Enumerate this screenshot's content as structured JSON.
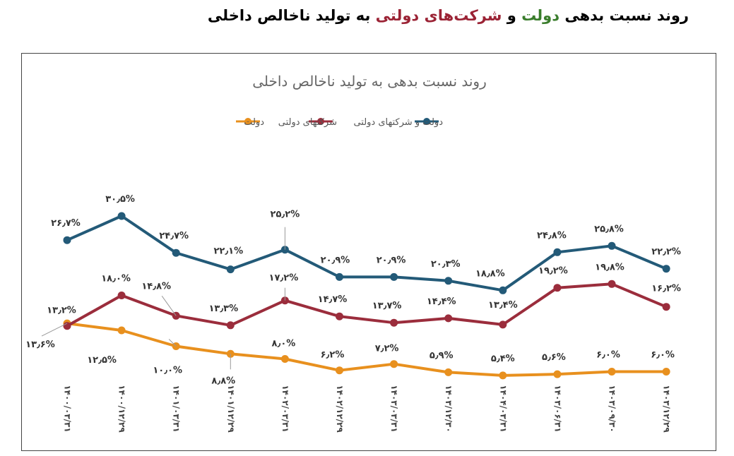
{
  "page_title": {
    "part1": "روند نسبت بدهی",
    "gov": "دولت",
    "and": "و",
    "soe": "شرکت‌های دولتی",
    "part2": "به تولید ناخالص داخلی"
  },
  "colors": {
    "gov": "#e8901e",
    "soe": "#9b2d3c",
    "total": "#235a78",
    "label": "#333333",
    "title": "#666666"
  },
  "chart_data": {
    "type": "line",
    "title": "روند نسبت بدهی به تولید ناخالص داخلی",
    "legend_position": "top",
    "grid": false,
    "categories": [
      "۱۴۰۰/۰۳/۳۱",
      "۱۴۰۰/۱۲/۲۹",
      "۱۴۰۱/۰۳/۳۱",
      "۱۴۰۱/۱۲/۲۹",
      "۱۴۰۲/۰۳/۳۱",
      "۱۴۰۲/۱۲/۲۹",
      "۱۴۰۳/۰۳/۳۱",
      "۱۴۰۳/۱۲/۳۰",
      "۱۴۰۴/۰۳/۳۱",
      "۱۴۰۳/۰۶/۳۱",
      "۱۴۰۳/۰۹/۳۰",
      "۱۴۰۳/۱۲/۲۹"
    ],
    "series": [
      {
        "name": "دولت",
        "key": "gov",
        "values": [
          13.6,
          12.5,
          10.0,
          8.8,
          8.0,
          6.2,
          7.2,
          5.9,
          5.4,
          5.6,
          6.0,
          6.0
        ],
        "labels": [
          "۱۳٫۶%",
          "۱۲٫۵%",
          "۱۰٫۰%",
          "۸٫۸%",
          "۸٫۰%",
          "۶٫۲%",
          "۷٫۲%",
          "۵٫۹%",
          "۵٫۴%",
          "۵٫۶%",
          "۶٫۰%",
          "۶٫۰%"
        ]
      },
      {
        "name": "شرکتهای دولتی",
        "key": "soe",
        "values": [
          13.2,
          18.0,
          14.8,
          13.3,
          17.2,
          14.7,
          13.7,
          14.4,
          13.4,
          19.2,
          19.8,
          16.2
        ],
        "labels": [
          "۱۳٫۲%",
          "۱۸٫۰%",
          "۱۴٫۸%",
          "۱۳٫۳%",
          "۱۷٫۲%",
          "۱۴٫۷%",
          "۱۳٫۷%",
          "۱۴٫۴%",
          "۱۳٫۴%",
          "۱۹٫۲%",
          "۱۹٫۸%",
          "۱۶٫۲%"
        ]
      },
      {
        "name": "دولت و شرکتهای دولتی",
        "key": "total",
        "values": [
          26.7,
          30.5,
          24.7,
          22.1,
          25.2,
          20.9,
          20.9,
          20.3,
          18.8,
          24.8,
          25.8,
          22.2
        ],
        "labels": [
          "۲۶٫۷%",
          "۳۰٫۵%",
          "۲۴٫۷%",
          "۲۲٫۱%",
          "۲۵٫۲%",
          "۲۰٫۹%",
          "۲۰٫۹%",
          "۲۰٫۳%",
          "۱۸٫۸%",
          "۲۴٫۸%",
          "۲۵٫۸%",
          "۲۲٫۲%"
        ]
      }
    ]
  }
}
